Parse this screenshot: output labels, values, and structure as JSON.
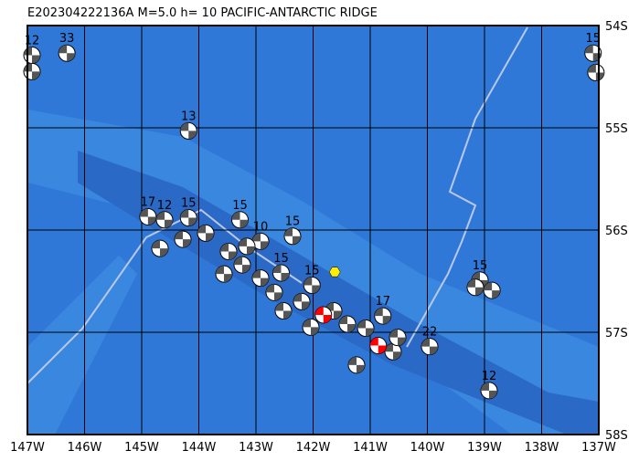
{
  "title": "E202304222136A  M=5.0  h= 10  PACIFIC-ANTARCTIC RIDGE",
  "lon_ticks": [
    {
      "value": 147,
      "label": "147W"
    },
    {
      "value": 146,
      "label": "146W"
    },
    {
      "value": 145,
      "label": "145W"
    },
    {
      "value": 144,
      "label": "144W"
    },
    {
      "value": 143,
      "label": "143W"
    },
    {
      "value": 142,
      "label": "142W"
    },
    {
      "value": 141,
      "label": "141W"
    },
    {
      "value": 140,
      "label": "140W"
    },
    {
      "value": 139,
      "label": "139W"
    },
    {
      "value": 138,
      "label": "138W"
    },
    {
      "value": 137,
      "label": "137W"
    }
  ],
  "lat_ticks": [
    {
      "value": 54,
      "label": "54S"
    },
    {
      "value": 55,
      "label": "55S"
    },
    {
      "value": 56,
      "label": "56S"
    },
    {
      "value": 57,
      "label": "57S"
    },
    {
      "value": 58,
      "label": "58S"
    }
  ],
  "lon_range": [
    147,
    137
  ],
  "lat_range": [
    54,
    58
  ],
  "epicenter": {
    "lon": 141.62,
    "lat": 56.41,
    "color": "#ffee00"
  },
  "events": [
    {
      "lon": 146.92,
      "lat": 54.29,
      "depth": "12"
    },
    {
      "lon": 146.31,
      "lat": 54.27,
      "depth": "33"
    },
    {
      "lon": 144.18,
      "lat": 55.03,
      "depth": "13"
    },
    {
      "lon": 137.1,
      "lat": 54.27,
      "depth": "15"
    },
    {
      "lon": 144.89,
      "lat": 55.87,
      "depth": "17"
    },
    {
      "lon": 144.6,
      "lat": 55.9,
      "depth": "12"
    },
    {
      "lon": 144.18,
      "lat": 55.88,
      "depth": "15"
    },
    {
      "lon": 143.28,
      "lat": 55.9,
      "depth": "15"
    },
    {
      "lon": 142.36,
      "lat": 56.06,
      "depth": "15"
    },
    {
      "lon": 142.92,
      "lat": 56.11,
      "depth": "10"
    },
    {
      "lon": 142.56,
      "lat": 56.42,
      "depth": "15"
    },
    {
      "lon": 142.02,
      "lat": 56.54,
      "depth": "15"
    },
    {
      "lon": 140.78,
      "lat": 56.84,
      "depth": "17"
    },
    {
      "lon": 139.96,
      "lat": 57.14,
      "depth": "22"
    },
    {
      "lon": 138.92,
      "lat": 57.57,
      "depth": "12"
    },
    {
      "lon": 139.08,
      "lat": 56.49,
      "depth": "15"
    },
    {
      "lon": 144.68,
      "lat": 56.18
    },
    {
      "lon": 144.28,
      "lat": 56.09
    },
    {
      "lon": 143.88,
      "lat": 56.03
    },
    {
      "lon": 143.48,
      "lat": 56.21
    },
    {
      "lon": 143.24,
      "lat": 56.34
    },
    {
      "lon": 142.92,
      "lat": 56.47
    },
    {
      "lon": 142.68,
      "lat": 56.61
    },
    {
      "lon": 142.52,
      "lat": 56.79
    },
    {
      "lon": 142.2,
      "lat": 56.7
    },
    {
      "lon": 142.04,
      "lat": 56.95
    },
    {
      "lon": 141.64,
      "lat": 56.79
    },
    {
      "lon": 141.4,
      "lat": 56.92
    },
    {
      "lon": 141.24,
      "lat": 57.32
    },
    {
      "lon": 141.08,
      "lat": 56.96
    },
    {
      "lon": 140.6,
      "lat": 57.19
    },
    {
      "lon": 140.52,
      "lat": 57.05
    },
    {
      "lon": 143.16,
      "lat": 56.16
    },
    {
      "lon": 143.56,
      "lat": 56.43
    },
    {
      "lon": 139.16,
      "lat": 56.56
    },
    {
      "lon": 138.87,
      "lat": 56.59
    },
    {
      "lon": 146.92,
      "lat": 54.45
    },
    {
      "lon": 137.05,
      "lat": 54.46
    },
    {
      "lon": 141.82,
      "lat": 56.83,
      "color": "#ff0000"
    },
    {
      "lon": 140.86,
      "lat": 57.13,
      "color": "#ff0000"
    }
  ]
}
